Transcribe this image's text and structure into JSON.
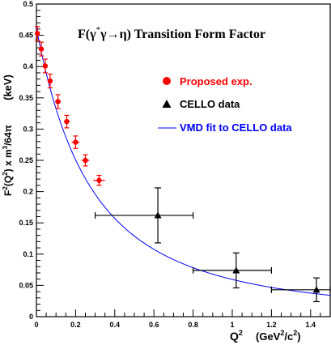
{
  "chart_data": {
    "type": "scatter",
    "title": "F(γ*γ→η) Transition Form Factor",
    "title_parts": {
      "pre": "F(γ",
      "sup": "*",
      "post": "γ→η) Transition Form Factor"
    },
    "xlabel": "Q² (GeV²/c²)",
    "xlabel_parts": {
      "q": "Q",
      "q_sup": "2",
      "unit_pre": "(GeV",
      "unit_sup": "2",
      "unit_post": "/c",
      "unit_sup2": "2",
      "unit_close": ")"
    },
    "ylabel": "F²(Q²) x m³/64π (keV)",
    "ylabel_parts": {
      "a": "F",
      "a_sup": "2",
      "b": "(Q",
      "b_sup": "2",
      "c": ") x m",
      "c_sup": "3",
      "d": "/64π",
      "unit": "(keV)"
    },
    "xlim": [
      0,
      1.5
    ],
    "ylim": [
      0,
      0.5
    ],
    "x_ticks": [
      {
        "value": 0,
        "label": "0"
      },
      {
        "value": 0.2,
        "label": "0.2"
      },
      {
        "value": 0.4,
        "label": "0.4"
      },
      {
        "value": 0.6,
        "label": "0.6"
      },
      {
        "value": 0.8,
        "label": "0.8"
      },
      {
        "value": 1.0,
        "label": "1"
      },
      {
        "value": 1.2,
        "label": "1.2"
      },
      {
        "value": 1.4,
        "label": "1.4"
      }
    ],
    "y_ticks": [
      {
        "value": 0,
        "label": "0"
      },
      {
        "value": 0.05,
        "label": "0.05"
      },
      {
        "value": 0.1,
        "label": "0.1"
      },
      {
        "value": 0.15,
        "label": "0.15"
      },
      {
        "value": 0.2,
        "label": "0.2"
      },
      {
        "value": 0.25,
        "label": "0.25"
      },
      {
        "value": 0.3,
        "label": "0.3"
      },
      {
        "value": 0.35,
        "label": "0.35"
      },
      {
        "value": 0.4,
        "label": "0.4"
      },
      {
        "value": 0.45,
        "label": "0.45"
      },
      {
        "value": 0.5,
        "label": "0.5"
      }
    ],
    "grid": false,
    "legend_position": "right",
    "legend": [
      {
        "label": "Proposed exp.",
        "marker": "circle",
        "color": "#ff0000"
      },
      {
        "label": "CELLO data",
        "marker": "triangle",
        "color": "#000000"
      },
      {
        "label": "VMD fit to CELLO data",
        "marker": "line",
        "color": "#0000ff"
      }
    ],
    "series": [
      {
        "name": "Proposed exp.",
        "marker": "circle",
        "color": "#ff0000",
        "points": [
          {
            "x": 0.005,
            "y": 0.453,
            "xerr": 0.005,
            "yerr": 0.011
          },
          {
            "x": 0.025,
            "y": 0.428,
            "xerr": 0.008,
            "yerr": 0.011
          },
          {
            "x": 0.045,
            "y": 0.401,
            "xerr": 0.008,
            "yerr": 0.011
          },
          {
            "x": 0.07,
            "y": 0.377,
            "xerr": 0.01,
            "yerr": 0.011
          },
          {
            "x": 0.11,
            "y": 0.344,
            "xerr": 0.015,
            "yerr": 0.011
          },
          {
            "x": 0.155,
            "y": 0.312,
            "xerr": 0.015,
            "yerr": 0.01
          },
          {
            "x": 0.2,
            "y": 0.279,
            "xerr": 0.02,
            "yerr": 0.01
          },
          {
            "x": 0.25,
            "y": 0.25,
            "xerr": 0.02,
            "yerr": 0.009
          },
          {
            "x": 0.32,
            "y": 0.218,
            "xerr": 0.03,
            "yerr": 0.008
          }
        ]
      },
      {
        "name": "CELLO data",
        "marker": "triangle",
        "color": "#000000",
        "points": [
          {
            "x": 0.62,
            "y": 0.162,
            "xlo": 0.3,
            "xhi": 0.8,
            "ylo": 0.118,
            "yhi": 0.206
          },
          {
            "x": 1.02,
            "y": 0.074,
            "xlo": 0.8,
            "xhi": 1.2,
            "ylo": 0.046,
            "yhi": 0.102
          },
          {
            "x": 1.43,
            "y": 0.043,
            "xlo": 1.2,
            "xhi": 1.5,
            "ylo": 0.024,
            "yhi": 0.062
          }
        ]
      },
      {
        "name": "VMD fit to CELLO data",
        "marker": "line",
        "color": "#0000ff",
        "curve": {
          "form": "A/(1+x/L2)^2",
          "A": 0.462,
          "L2": 0.56,
          "x_range": [
            0,
            1.5
          ]
        }
      }
    ]
  }
}
